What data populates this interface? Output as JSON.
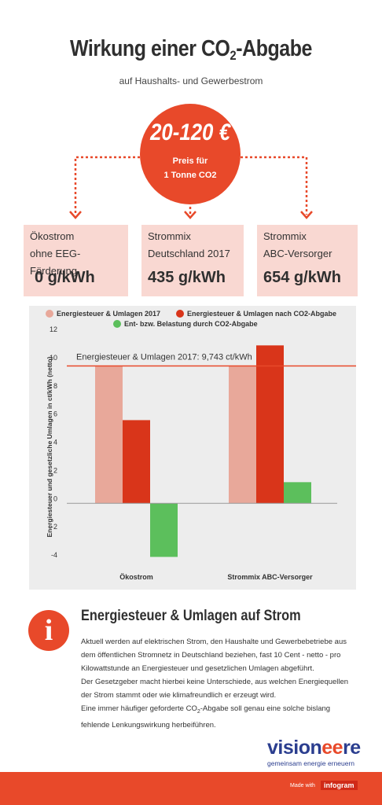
{
  "header": {
    "title_prefix": "Wirkung einer CO",
    "title_sub": "2",
    "title_suffix": "-Abgabe",
    "subtitle": "auf Haushalts- und Gewerbestrom"
  },
  "price": {
    "value": "20-120 €",
    "line1": "Preis für",
    "line2": "1 Tonne CO2"
  },
  "cards": [
    {
      "line1": "Ökostrom",
      "line2": "ohne EEG-Förderung",
      "value": "0 g/kWh"
    },
    {
      "line1": "Strommix",
      "line2": "Deutschland 2017",
      "value": "435 g/kWh"
    },
    {
      "line1": "Strommix",
      "line2": "ABC-Versorger",
      "value": "654 g/kWh"
    }
  ],
  "chart_data": {
    "type": "bar",
    "categories": [
      "Ökostrom",
      "Strommix ABC-Versorger"
    ],
    "series": [
      {
        "name": "Energiesteuer & Umlagen 2017",
        "color": "#e8a89a",
        "values": [
          9.743,
          9.743
        ]
      },
      {
        "name": "Energiesteuer & Umlagen nach CO2-Abgabe",
        "color": "#d9351a",
        "values": [
          5.9,
          11.2
        ]
      },
      {
        "name": "Ent- bzw. Belastung durch CO2-Abgabe",
        "color": "#5cbf5c",
        "values": [
          -3.8,
          1.5
        ]
      }
    ],
    "ylabel": "Energiesteuer und gesetzliche Umlagen in ct/kWh (netto)",
    "xlabel": "",
    "ylim": [
      -4,
      12
    ],
    "yticks": [
      -4,
      -2,
      0,
      2,
      4,
      6,
      8,
      10,
      12
    ],
    "reference_line": {
      "value": 9.743,
      "label": "Energiesteuer & Umlagen 2017: 9,743 ct/kWh",
      "color": "#e8492a"
    },
    "legend": "top",
    "grid": false
  },
  "info": {
    "icon": "info-icon",
    "heading": "Energiesteuer & Umlagen auf Strom",
    "p1": "Aktuell werden auf elektrischen Strom, den Haushalte und Gewerbebetriebe aus dem öffentlichen Stromnetz in Deutschland beziehen, fast 10 Cent - netto - pro Kilowattstunde an Energiesteuer und gesetzlichen Umlagen abgeführt.",
    "p2": "Der Gesetzgeber macht hierbei keine Unterschiede, aus welchen Energiequellen der Strom stammt oder wie klimafreundlich er erzeugt wird.",
    "p3_prefix": "Eine immer häufiger geforderte CO",
    "p3_sub": "2",
    "p3_suffix": "-Abgabe soll genau eine solche bislang fehlende Lenkungswirkung herbeiführen."
  },
  "logo": {
    "word_pre": "vision",
    "word_post": "re",
    "tagline": "gemeinsam energie erneuern"
  },
  "footer": {
    "made_with": "Made with",
    "brand": "infogram"
  },
  "colors": {
    "accent": "#e8492a",
    "card_bg": "#f9d8d2",
    "chart_bg": "#ededed"
  }
}
